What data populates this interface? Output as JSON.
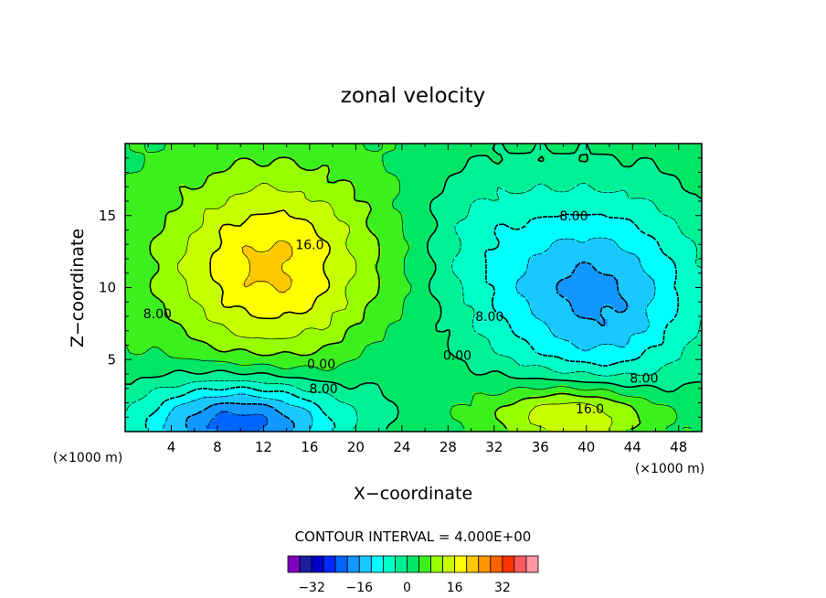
{
  "chart_data": {
    "type": "contour",
    "title": "zonal velocity",
    "xlabel": "X−coordinate",
    "ylabel": "Z−coordinate",
    "xlim": [
      0,
      50
    ],
    "ylim": [
      0,
      20
    ],
    "x_ticks": [
      4,
      8,
      12,
      16,
      20,
      24,
      28,
      32,
      36,
      40,
      44,
      48
    ],
    "x_tick_labels": [
      "4",
      "8",
      "12",
      "16",
      "20",
      "24",
      "28",
      "32",
      "36",
      "40",
      "44",
      "48"
    ],
    "y_ticks": [
      5,
      10,
      15
    ],
    "y_tick_labels": [
      "5",
      "10",
      "15"
    ],
    "x_unit_left": "(×1000 m)",
    "x_unit_right": "(×1000 m)",
    "contour_interval_label": "CONTOUR INTERVAL = 4.000E+00",
    "contour_interval": 4,
    "contour_labels": [
      {
        "text": "16.0",
        "x": 16.0,
        "y": 13.0
      },
      {
        "text": "8.00",
        "x": 2.8,
        "y": 8.2
      },
      {
        "text": "0.00",
        "x": 17.0,
        "y": 4.7
      },
      {
        "text": "8.00",
        "x": 17.2,
        "y": 3.0
      },
      {
        "text": "8.00",
        "x": 38.9,
        "y": 15.0
      },
      {
        "text": "8.00",
        "x": 31.6,
        "y": 8.0
      },
      {
        "text": "0.00",
        "x": 28.8,
        "y": 5.3
      },
      {
        "text": "8.00",
        "x": 45.0,
        "y": 3.7
      },
      {
        "text": "16.0",
        "x": 40.3,
        "y": 1.6
      }
    ],
    "features": [
      {
        "center_x": 12.5,
        "center_z": 11.5,
        "peak": 20
      },
      {
        "center_x": 10.0,
        "center_z": 0.9,
        "peak": -24
      },
      {
        "center_x": 40.0,
        "center_z": 9.0,
        "peak": -20
      },
      {
        "center_x": 39.0,
        "center_z": 1.4,
        "peak": 20
      }
    ],
    "colorbar": {
      "levels": [
        -36,
        -32,
        -28,
        -24,
        -20,
        -16,
        -12,
        -8,
        -4,
        0,
        4,
        8,
        12,
        16,
        20,
        24,
        28,
        32,
        36
      ],
      "tick_values": [
        -32,
        -16,
        0,
        16,
        32
      ],
      "tick_labels": [
        "−32",
        "−16",
        "0",
        "16",
        "32"
      ],
      "colors": [
        "#8000c0",
        "#1c1ca0",
        "#0000c8",
        "#0028ff",
        "#0064ff",
        "#1296ff",
        "#18c8ff",
        "#00ffff",
        "#00ffc8",
        "#00f096",
        "#00e664",
        "#3cf01e",
        "#96ff00",
        "#c8ff00",
        "#ffff00",
        "#ffc800",
        "#ff9600",
        "#ff6400",
        "#ff3200",
        "#ff5a64",
        "#ff96a0"
      ]
    }
  }
}
